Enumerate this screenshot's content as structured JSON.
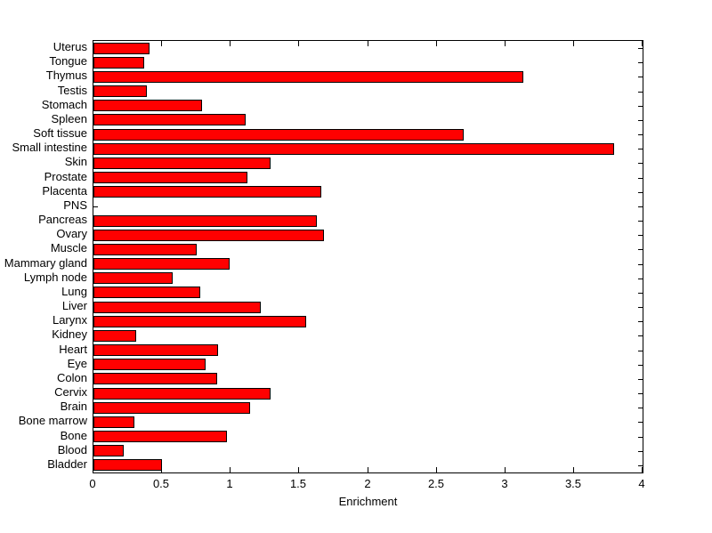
{
  "figure": {
    "background_color": "#FFFFFF",
    "axis_color": "#000000",
    "text_color": "#000000"
  },
  "chart_data": {
    "type": "bar",
    "orientation": "horizontal",
    "title": "",
    "xlabel": "Enrichment",
    "ylabel": "",
    "grid": false,
    "legend": "none",
    "xlim": [
      0,
      4
    ],
    "xticks": [
      0,
      0.5,
      1,
      1.5,
      2,
      2.5,
      3,
      3.5,
      4
    ],
    "xtick_labels": [
      "0",
      "0.5",
      "1",
      "1.5",
      "2",
      "2.5",
      "3",
      "3.5",
      "4"
    ],
    "bar_color": "#FF0000",
    "bar_edge_color": "#000000",
    "categories": [
      "Uterus",
      "Tongue",
      "Thymus",
      "Testis",
      "Stomach",
      "Spleen",
      "Soft tissue",
      "Small intestine",
      "Skin",
      "Prostate",
      "Placenta",
      "PNS",
      "Pancreas",
      "Ovary",
      "Muscle",
      "Mammary gland",
      "Lymph node",
      "Lung",
      "Liver",
      "Larynx",
      "Kidney",
      "Heart",
      "Eye",
      "Colon",
      "Cervix",
      "Brain",
      "Bone marrow",
      "Bone",
      "Blood",
      "Bladder"
    ],
    "values": [
      0.41,
      0.37,
      3.13,
      0.39,
      0.79,
      1.11,
      2.7,
      3.79,
      1.29,
      1.12,
      1.66,
      0.0,
      1.63,
      1.68,
      0.75,
      0.99,
      0.58,
      0.78,
      1.22,
      1.55,
      0.31,
      0.91,
      0.82,
      0.9,
      1.29,
      1.14,
      0.3,
      0.97,
      0.22,
      0.5
    ]
  }
}
